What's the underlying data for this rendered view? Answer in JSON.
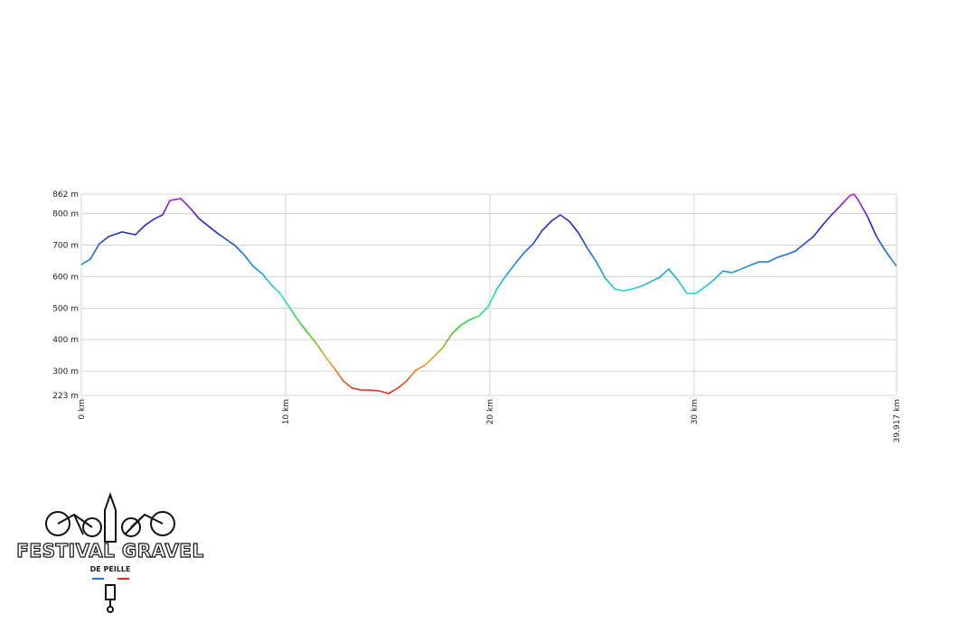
{
  "chart_data": {
    "type": "line",
    "x": [
      0,
      0.44,
      0.88,
      1.33,
      1.99,
      2.65,
      3.1,
      3.54,
      3.98,
      4.34,
      4.87,
      5.31,
      5.75,
      6.19,
      6.64,
      7.08,
      7.52,
      7.96,
      8.41,
      8.85,
      9.29,
      9.73,
      10.18,
      10.62,
      11.06,
      11.5,
      11.95,
      12.39,
      12.83,
      13.27,
      13.72,
      14.16,
      14.6,
      15.04,
      15.49,
      15.93,
      16.37,
      16.81,
      17.26,
      17.7,
      18.14,
      18.58,
      19.03,
      19.47,
      19.91,
      20.35,
      20.8,
      21.24,
      21.68,
      22.12,
      22.57,
      23.01,
      23.45,
      23.89,
      24.34,
      24.78,
      25.22,
      25.66,
      26.11,
      26.55,
      26.99,
      27.43,
      27.88,
      28.32,
      28.76,
      29.2,
      29.65,
      30.09,
      30.53,
      30.97,
      31.42,
      31.86,
      32.3,
      32.74,
      33.19,
      33.63,
      34.07,
      34.51,
      34.96,
      35.4,
      35.84,
      36.28,
      36.73,
      37.17,
      37.61,
      37.83,
      38.05,
      38.5,
      38.94,
      39.38,
      39.917
    ],
    "values": [
      638,
      656,
      704,
      727,
      742,
      733,
      762,
      782,
      796,
      842,
      848,
      819,
      785,
      762,
      739,
      719,
      699,
      670,
      633,
      610,
      575,
      547,
      504,
      461,
      424,
      389,
      346,
      309,
      269,
      246,
      240,
      240,
      237,
      229,
      246,
      269,
      303,
      318,
      346,
      375,
      418,
      446,
      464,
      475,
      504,
      561,
      604,
      641,
      676,
      704,
      747,
      776,
      796,
      776,
      739,
      690,
      647,
      595,
      561,
      555,
      561,
      570,
      584,
      598,
      624,
      590,
      547,
      547,
      567,
      590,
      618,
      613,
      624,
      636,
      647,
      647,
      661,
      670,
      681,
      704,
      727,
      762,
      796,
      825,
      856,
      862,
      842,
      790,
      727,
      681,
      633
    ],
    "colors": [
      "#e0201a",
      "#f0a020",
      "#30d020",
      "#20e0c8",
      "#1a80e0",
      "#2020c0",
      "#b020e0"
    ],
    "xlim": [
      0,
      39.917
    ],
    "xticks": [
      {
        "value": 0,
        "label": "0 km"
      },
      {
        "value": 10,
        "label": "10 km"
      },
      {
        "value": 20,
        "label": "20 km"
      },
      {
        "value": 30,
        "label": "30 km"
      },
      {
        "value": 39.917,
        "label": "39.917 km"
      }
    ],
    "ylim": [
      223,
      862
    ],
    "yticks": [
      {
        "value": 223,
        "label": "223 m"
      },
      {
        "value": 300,
        "label": "300 m"
      },
      {
        "value": 400,
        "label": "400 m"
      },
      {
        "value": 500,
        "label": "500 m"
      },
      {
        "value": 600,
        "label": "600 m"
      },
      {
        "value": 700,
        "label": "700 m"
      },
      {
        "value": 800,
        "label": "800 m"
      },
      {
        "value": 862,
        "label": "862 m"
      }
    ],
    "grid": true
  },
  "logo": {
    "title": "FESTIVAL GRAVEL",
    "subtitle": "DE PEILLE"
  }
}
